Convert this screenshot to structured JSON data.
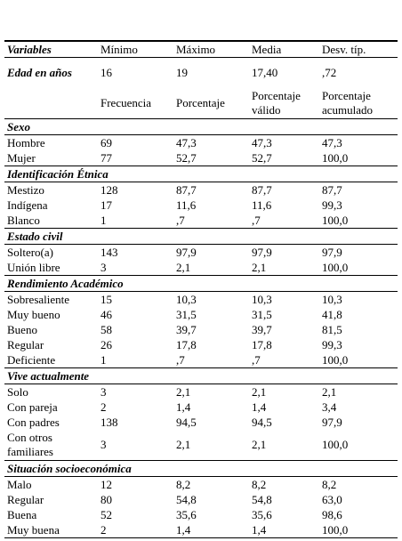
{
  "header": [
    "Variables",
    "Mínimo",
    "Máximo",
    "Media",
    "Desv. típ."
  ],
  "age": {
    "label": "Edad en años",
    "values": [
      "16",
      "19",
      "17,40",
      ",72"
    ]
  },
  "freq_header": [
    "Frecuencia",
    "Porcentaje",
    "Porcentaje válido",
    "Porcentaje acumulado"
  ],
  "sections": [
    {
      "title": "Sexo",
      "rows": [
        [
          "Hombre",
          "69",
          "47,3",
          "47,3",
          "47,3"
        ],
        [
          "Mujer",
          "77",
          "52,7",
          "52,7",
          "100,0"
        ]
      ]
    },
    {
      "title": "Identificación Étnica",
      "rows": [
        [
          "Mestizo",
          "128",
          "87,7",
          "87,7",
          "87,7"
        ],
        [
          "Indígena",
          "17",
          "11,6",
          "11,6",
          "99,3"
        ],
        [
          "Blanco",
          "1",
          ",7",
          ",7",
          "100,0"
        ]
      ]
    },
    {
      "title": "Estado civil",
      "rows": [
        [
          "Soltero(a)",
          "143",
          "97,9",
          "97,9",
          "97,9"
        ],
        [
          "Unión libre",
          "3",
          "2,1",
          "2,1",
          "100,0"
        ]
      ]
    },
    {
      "title": "Rendimiento Académico",
      "rows": [
        [
          "Sobresaliente",
          "15",
          "10,3",
          "10,3",
          "10,3"
        ],
        [
          "Muy bueno",
          "46",
          "31,5",
          "31,5",
          "41,8"
        ],
        [
          "Bueno",
          "58",
          "39,7",
          "39,7",
          "81,5"
        ],
        [
          "Regular",
          "26",
          "17,8",
          "17,8",
          "99,3"
        ],
        [
          "Deficiente",
          "1",
          ",7",
          ",7",
          "100,0"
        ]
      ]
    },
    {
      "title": "Vive actualmente",
      "rows": [
        [
          "Solo",
          "3",
          "2,1",
          "2,1",
          "2,1"
        ],
        [
          "Con pareja",
          "2",
          "1,4",
          "1,4",
          "3,4"
        ],
        [
          "Con padres",
          "138",
          "94,5",
          "94,5",
          "97,9"
        ],
        [
          "Con otros familiares",
          "3",
          "2,1",
          "2,1",
          "100,0"
        ]
      ]
    },
    {
      "title": "Situación socioeconómica",
      "rows": [
        [
          "Malo",
          "12",
          "8,2",
          "8,2",
          "8,2"
        ],
        [
          "Regular",
          "80",
          "54,8",
          "54,8",
          "63,0"
        ],
        [
          "Buena",
          "52",
          "35,6",
          "35,6",
          "98,6"
        ],
        [
          "Muy buena",
          "2",
          "1,4",
          "1,4",
          "100,0"
        ]
      ]
    }
  ]
}
